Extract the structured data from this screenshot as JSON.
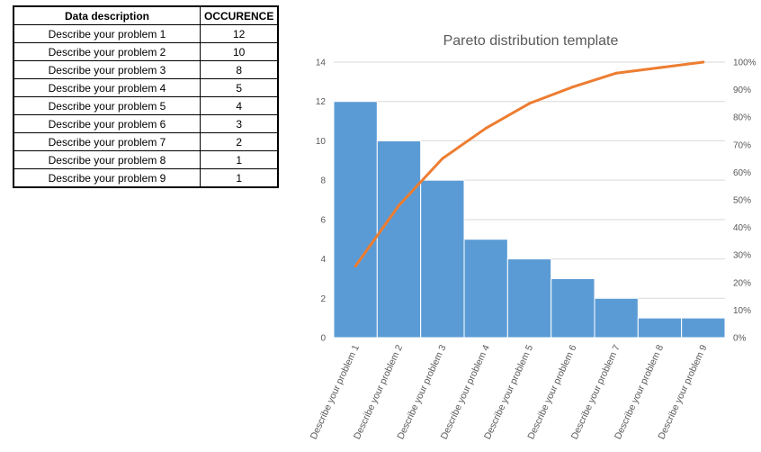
{
  "table": {
    "headers": [
      "Data description",
      "OCCURENCE"
    ],
    "rows": [
      [
        "Describe your problem 1",
        "12"
      ],
      [
        "Describe your problem 2",
        "10"
      ],
      [
        "Describe your problem 3",
        "8"
      ],
      [
        "Describe your problem 4",
        "5"
      ],
      [
        "Describe your problem 5",
        "4"
      ],
      [
        "Describe your problem 6",
        "3"
      ],
      [
        "Describe your problem 7",
        "2"
      ],
      [
        "Describe your problem 8",
        "1"
      ],
      [
        "Describe your problem 9",
        "1"
      ]
    ]
  },
  "chart_data": {
    "type": "bar",
    "title": "Pareto distribution template",
    "categories": [
      "Describe your problem 1",
      "Describe your problem 2",
      "Describe your problem 3",
      "Describe your problem 4",
      "Describe your problem 5",
      "Describe your problem 6",
      "Describe your problem 7",
      "Describe your problem 8",
      "Describe your problem 9"
    ],
    "series": [
      {
        "type": "bar",
        "axis": "left",
        "values": [
          12,
          10,
          8,
          5,
          4,
          3,
          2,
          1,
          1
        ],
        "color": "#5B9BD5"
      },
      {
        "type": "line",
        "axis": "right",
        "values": [
          0.26,
          0.48,
          0.65,
          0.76,
          0.85,
          0.91,
          0.96,
          0.98,
          1.0
        ],
        "color": "#ED7D31"
      }
    ],
    "ylim": [
      0,
      14
    ],
    "yticks": [
      "0",
      "2",
      "4",
      "6",
      "8",
      "10",
      "12",
      "14"
    ],
    "y2lim": [
      0,
      1
    ],
    "y2ticks": [
      "0%",
      "10%",
      "20%",
      "30%",
      "40%",
      "50%",
      "60%",
      "70%",
      "80%",
      "90%",
      "100%"
    ],
    "grid": true,
    "legend": "none"
  }
}
